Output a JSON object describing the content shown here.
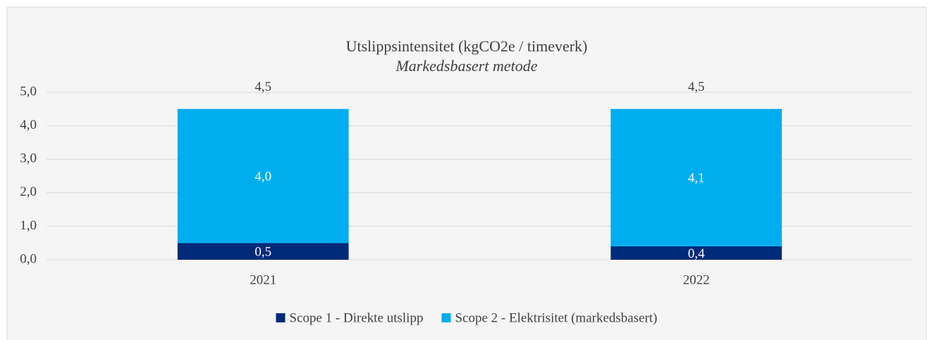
{
  "chart_data": {
    "type": "stacked_bar",
    "title": "Utslippsintensitet (kgCO2e / timeverk)",
    "subtitle": "Markedsbasert metode",
    "categories": [
      "2021",
      "2022"
    ],
    "series": [
      {
        "name": "Scope 1 - Direkte utslipp",
        "color": "#002b7a",
        "values": [
          0.5,
          0.4
        ],
        "value_labels": [
          "0,5",
          "0,4"
        ]
      },
      {
        "name": "Scope 2 - Elektrisitet (markedsbasert)",
        "color": "#00adee",
        "values": [
          4.0,
          4.1
        ],
        "value_labels": [
          "4,0",
          "4,1"
        ]
      }
    ],
    "totals": [
      4.5,
      4.5
    ],
    "total_labels": [
      "4,5",
      "4,5"
    ],
    "ylim": [
      0,
      5
    ],
    "yticks": [
      {
        "value": 0,
        "label": "0,0"
      },
      {
        "value": 1,
        "label": "1,0"
      },
      {
        "value": 2,
        "label": "2,0"
      },
      {
        "value": 3,
        "label": "3,0"
      },
      {
        "value": 4,
        "label": "4,0"
      },
      {
        "value": 5,
        "label": "5,0"
      }
    ],
    "grid": true,
    "legend": "bottom"
  }
}
